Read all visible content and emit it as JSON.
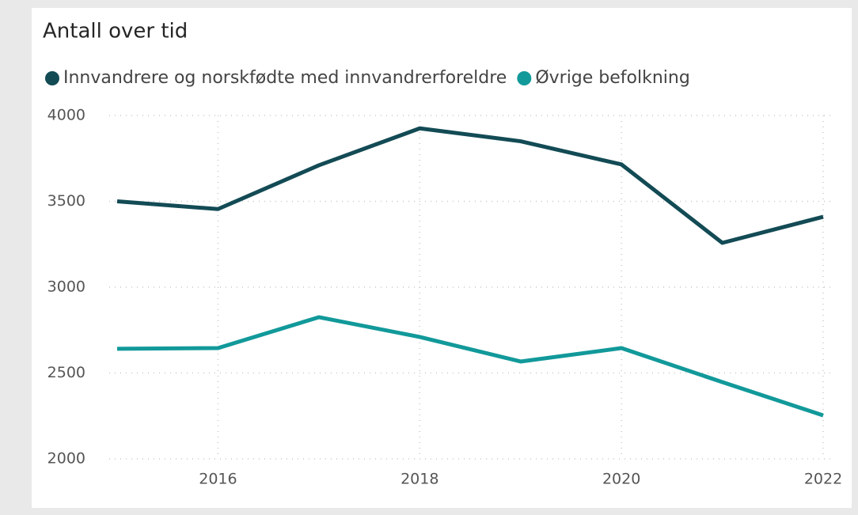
{
  "chart_data": {
    "type": "line",
    "title": "Antall over tid",
    "x": [
      2015,
      2016,
      2017,
      2018,
      2019,
      2020,
      2021,
      2022
    ],
    "series": [
      {
        "name": "Innvandrere og norskfødte med innvandrerforeldre",
        "color": "#134b55",
        "values": [
          3500,
          3455,
          3710,
          3925,
          3850,
          3715,
          3258,
          3410
        ]
      },
      {
        "name": "Øvrige befolkning",
        "color": "#12999a",
        "values": [
          2641,
          2645,
          2825,
          2710,
          2567,
          2645,
          2447,
          2253
        ]
      }
    ],
    "xlim": [
      2015,
      2022
    ],
    "xticks": [
      2016,
      2018,
      2020,
      2022
    ],
    "ylim": [
      2000,
      4000
    ],
    "yticks": [
      2000,
      2500,
      3000,
      3500,
      4000
    ],
    "grid": true
  }
}
